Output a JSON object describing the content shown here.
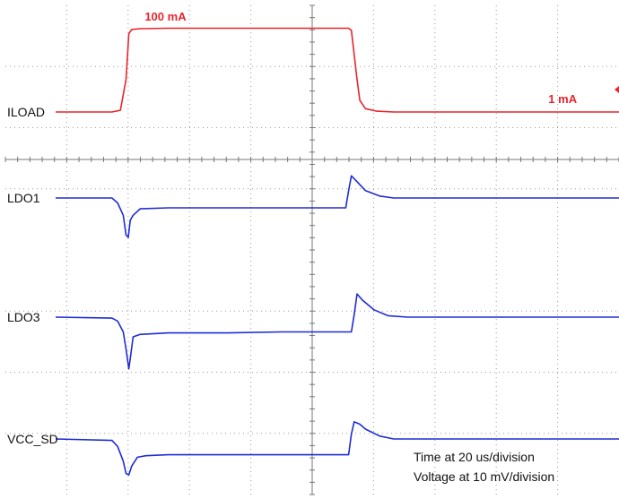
{
  "chart_data": {
    "type": "line",
    "time_scale_label": "Time at 20 us/division",
    "voltage_scale_label": "Voltage at 10 mV/division",
    "x_divisions": 10,
    "y_divisions": 8,
    "grid": "dotted",
    "x_unit": "us",
    "xlim": [
      0,
      200
    ],
    "series": [
      {
        "name": "ILOAD",
        "color": "#e8242c",
        "unit": "mA",
        "annotations": [
          {
            "text": "100 mA",
            "x": 39,
            "y": 100,
            "color": "#e8242c"
          },
          {
            "text": "1 mA",
            "x": 180,
            "y": 1,
            "color": "#e8242c"
          }
        ],
        "points": [
          [
            0,
            1
          ],
          [
            20,
            1
          ],
          [
            23,
            3
          ],
          [
            25,
            40
          ],
          [
            26,
            95
          ],
          [
            27,
            100
          ],
          [
            30,
            101
          ],
          [
            40,
            101.5
          ],
          [
            60,
            101.5
          ],
          [
            80,
            101.5
          ],
          [
            104,
            101.5
          ],
          [
            105,
            99
          ],
          [
            106,
            70
          ],
          [
            107,
            40
          ],
          [
            108,
            15
          ],
          [
            110,
            5
          ],
          [
            114,
            2
          ],
          [
            120,
            1
          ],
          [
            140,
            1
          ],
          [
            160,
            1
          ],
          [
            180,
            1
          ],
          [
            200,
            1
          ]
        ]
      },
      {
        "name": "LDO1",
        "color": "#1f2bd6",
        "unit": "mV",
        "points": [
          [
            0,
            0
          ],
          [
            20,
            0
          ],
          [
            22,
            -1
          ],
          [
            24,
            -3.5
          ],
          [
            25,
            -7.5
          ],
          [
            25.8,
            -8
          ],
          [
            26.5,
            -4.5
          ],
          [
            27.5,
            -3.5
          ],
          [
            30,
            -2.2
          ],
          [
            40,
            -2
          ],
          [
            60,
            -2
          ],
          [
            80,
            -2
          ],
          [
            103,
            -2
          ],
          [
            104,
            1.5
          ],
          [
            105,
            4.5
          ],
          [
            107,
            3.3
          ],
          [
            110,
            1.5
          ],
          [
            115,
            0.4
          ],
          [
            120,
            0
          ],
          [
            140,
            0
          ],
          [
            160,
            0
          ],
          [
            180,
            0
          ],
          [
            200,
            0
          ]
        ]
      },
      {
        "name": "LDO3",
        "color": "#1f2bd6",
        "unit": "mV",
        "points": [
          [
            0,
            0
          ],
          [
            20,
            -0.2
          ],
          [
            22,
            -0.8
          ],
          [
            24,
            -3
          ],
          [
            25,
            -6.5
          ],
          [
            26,
            -10.5
          ],
          [
            26.6,
            -8
          ],
          [
            27.5,
            -4
          ],
          [
            30,
            -3.5
          ],
          [
            40,
            -3.2
          ],
          [
            60,
            -3.2
          ],
          [
            80,
            -3
          ],
          [
            105,
            -3
          ],
          [
            106,
            0.5
          ],
          [
            107,
            4.7
          ],
          [
            109,
            3.4
          ],
          [
            113,
            1.5
          ],
          [
            118,
            0.3
          ],
          [
            125,
            0
          ],
          [
            160,
            0
          ],
          [
            200,
            0
          ]
        ]
      },
      {
        "name": "VCC_SD",
        "color": "#1f2bd6",
        "unit": "mV",
        "points": [
          [
            0,
            0
          ],
          [
            20,
            -0.3
          ],
          [
            22,
            -1.5
          ],
          [
            24,
            -4.5
          ],
          [
            25,
            -7
          ],
          [
            26,
            -7.3
          ],
          [
            27,
            -5.5
          ],
          [
            29,
            -3.7
          ],
          [
            32,
            -3.4
          ],
          [
            40,
            -3.2
          ],
          [
            60,
            -3.2
          ],
          [
            80,
            -3.2
          ],
          [
            104,
            -3.2
          ],
          [
            105,
            1
          ],
          [
            106,
            3.5
          ],
          [
            108,
            3
          ],
          [
            110,
            2
          ],
          [
            115,
            0.6
          ],
          [
            120,
            0
          ],
          [
            160,
            0
          ],
          [
            200,
            0
          ]
        ]
      }
    ],
    "marker_color": "#e8242c",
    "scale_label_color": "#111111"
  }
}
